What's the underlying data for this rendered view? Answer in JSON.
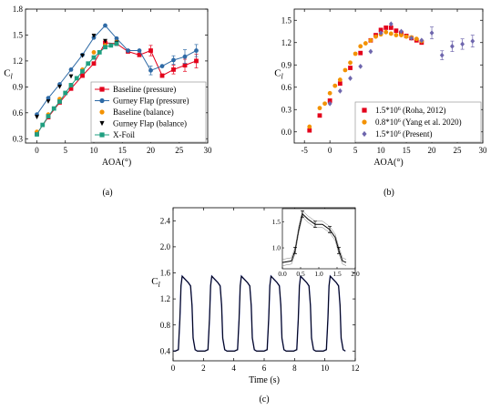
{
  "figure": {
    "panels": [
      {
        "id": "a",
        "label": "(a)",
        "xlabel": "AOA(°)",
        "ylabel": "C",
        "ylabel_sub": "l",
        "xlim": [
          -2,
          30
        ],
        "ylim": [
          0.25,
          1.8
        ],
        "xticks": [
          0,
          5,
          10,
          15,
          20,
          25,
          30
        ],
        "yticks": [
          0.3,
          0.6,
          0.9,
          1.2,
          1.5,
          1.8
        ],
        "ytick_labels": [
          "0.3",
          "0.6",
          "0.9",
          "1.2",
          "1.5",
          "1.8"
        ],
        "legend": [
          {
            "label": "Baseline (pressure)",
            "color": "#e3001b",
            "marker": "square",
            "line": true
          },
          {
            "label": "Gurney Flap (pressure)",
            "color": "#2e6aa6",
            "marker": "circle",
            "line": true
          },
          {
            "label": "Baseline (balance)",
            "color": "#f39200",
            "marker": "circle",
            "line": false
          },
          {
            "label": "Gurney Flap (balance)",
            "color": "#000000",
            "marker": "triangle-down",
            "line": false
          },
          {
            "label": "X-Foil",
            "color": "#1f9f80",
            "marker": "square",
            "line": true
          }
        ]
      },
      {
        "id": "b",
        "label": "(b)",
        "xlabel": "AOA(°)",
        "ylabel": "C",
        "ylabel_sub": "l",
        "xlim": [
          -7,
          30
        ],
        "ylim": [
          -0.15,
          1.65
        ],
        "xticks": [
          -5,
          0,
          5,
          10,
          15,
          20,
          25,
          30
        ],
        "yticks": [
          0.0,
          0.3,
          0.6,
          0.9,
          1.2,
          1.5
        ],
        "ytick_labels": [
          "0.0",
          "0.3",
          "0.6",
          "0.9",
          "1.2",
          "1.5"
        ],
        "legend": [
          {
            "label_pre": "1.5*10",
            "sup": "6",
            "label_post": " (Roha, 2012)",
            "color": "#e3001b",
            "marker": "square"
          },
          {
            "label_pre": "0.8*10",
            "sup": "6",
            "label_post": " (Yang et al. 2020)",
            "color": "#f39200",
            "marker": "circle"
          },
          {
            "label_pre": "1.5*10",
            "sup": "6",
            "label_post": " (Present)",
            "color": "#6e66ad",
            "marker": "diamond"
          }
        ]
      },
      {
        "id": "c",
        "label": "(c)",
        "xlabel": "Time (s)",
        "ylabel": "C",
        "ylabel_sub": "l",
        "xlim": [
          0,
          12
        ],
        "ylim": [
          0.25,
          2.6
        ],
        "xticks": [
          0,
          2,
          4,
          6,
          8,
          10,
          12
        ],
        "yticks": [
          0.4,
          0.8,
          1.2,
          1.6,
          2.0,
          2.4
        ],
        "ytick_labels": [
          "0.4",
          "0.8",
          "1.2",
          "1.6",
          "2.0",
          "2.4"
        ],
        "inset": {
          "xlim": [
            0,
            2
          ],
          "ylim": [
            0.6,
            1.75
          ],
          "xticks": [
            0,
            0.5,
            1.0,
            1.5,
            2.0
          ],
          "xtick_labels": [
            "0.0",
            "0.5",
            "1.0",
            "1.5",
            "2.0"
          ],
          "yticks": [
            1.0,
            1.5
          ],
          "ytick_labels": [
            "1.0",
            "1.5"
          ]
        }
      }
    ]
  },
  "chart_data": [
    {
      "type": "line",
      "panel": "a",
      "xlabel": "AOA(°)",
      "ylabel": "Cl",
      "xlim": [
        -2,
        30
      ],
      "ylim": [
        0.25,
        1.8
      ],
      "series": [
        {
          "name": "Baseline (pressure)",
          "color": "#e3001b",
          "marker": "square",
          "line": true,
          "x": [
            0,
            2,
            4,
            6,
            8,
            10,
            12,
            14,
            16,
            18,
            20,
            22,
            24,
            26,
            28
          ],
          "y": [
            0.36,
            0.55,
            0.72,
            0.88,
            1.03,
            1.17,
            1.41,
            1.4,
            1.31,
            1.27,
            1.32,
            1.03,
            1.1,
            1.15,
            1.2
          ],
          "err": [
            0,
            0,
            0,
            0,
            0,
            0,
            0,
            0,
            0,
            0,
            0.06,
            0,
            0.05,
            0.07,
            0.08
          ]
        },
        {
          "name": "Gurney Flap (pressure)",
          "color": "#2e6aa6",
          "marker": "circle",
          "line": true,
          "x": [
            0,
            2,
            4,
            6,
            8,
            10,
            12,
            14,
            16,
            18,
            20,
            22,
            24,
            26,
            28
          ],
          "y": [
            0.58,
            0.77,
            0.93,
            1.1,
            1.27,
            1.47,
            1.61,
            1.46,
            1.32,
            1.32,
            1.09,
            1.14,
            1.21,
            1.25,
            1.32
          ],
          "err": [
            0,
            0,
            0,
            0,
            0,
            0,
            0,
            0,
            0,
            0,
            0.05,
            0,
            0.05,
            0.08,
            0.07
          ]
        },
        {
          "name": "Baseline (balance)",
          "color": "#f39200",
          "marker": "circle",
          "line": false,
          "x": [
            0,
            2,
            4,
            6,
            8,
            10,
            12,
            14
          ],
          "y": [
            0.38,
            0.58,
            0.76,
            0.92,
            1.1,
            1.3,
            1.38,
            1.42
          ]
        },
        {
          "name": "Gurney Flap (balance)",
          "color": "#000000",
          "marker": "triangle-down",
          "line": false,
          "x": [
            0,
            2,
            4,
            6,
            8,
            10,
            12,
            14
          ],
          "y": [
            0.55,
            0.73,
            0.9,
            1.02,
            1.26,
            1.49,
            1.43,
            1.41
          ]
        },
        {
          "name": "X-Foil",
          "color": "#1f9f80",
          "marker": "square",
          "line": true,
          "x": [
            0,
            1,
            2,
            3,
            4,
            5,
            6,
            7,
            8,
            9,
            10,
            11,
            12,
            13,
            14
          ],
          "y": [
            0.35,
            0.46,
            0.56,
            0.65,
            0.73,
            0.83,
            0.92,
            1.0,
            1.08,
            1.17,
            1.24,
            1.3,
            1.36,
            1.38,
            1.4
          ]
        }
      ]
    },
    {
      "type": "scatter",
      "panel": "b",
      "xlabel": "AOA(°)",
      "ylabel": "Cl",
      "xlim": [
        -7,
        30
      ],
      "ylim": [
        -0.15,
        1.65
      ],
      "series": [
        {
          "name": "1.5*10^6 (Roha, 2012)",
          "color": "#e3001b",
          "marker": "square",
          "x": [
            -4,
            -2,
            0,
            2,
            4,
            6,
            8,
            9,
            10,
            11,
            12,
            13,
            14,
            15,
            16,
            17,
            18
          ],
          "y": [
            0.02,
            0.22,
            0.42,
            0.65,
            0.86,
            1.06,
            1.23,
            1.3,
            1.37,
            1.4,
            1.4,
            1.36,
            1.33,
            1.29,
            1.26,
            1.23,
            1.2
          ]
        },
        {
          "name": "0.8*10^6 (Yang et al. 2020)",
          "color": "#f39200",
          "marker": "circle",
          "x": [
            -4,
            -2,
            -1,
            0,
            1,
            2,
            3,
            4,
            5,
            6,
            7,
            8,
            9,
            10,
            11,
            12,
            13,
            14,
            15,
            16,
            17,
            18
          ],
          "y": [
            0.07,
            0.32,
            0.38,
            0.52,
            0.62,
            0.7,
            0.83,
            0.93,
            1.05,
            1.15,
            1.19,
            1.23,
            1.28,
            1.31,
            1.34,
            1.32,
            1.3,
            1.3,
            1.28,
            1.27,
            1.25,
            1.22
          ]
        },
        {
          "name": "1.5*10^6 (Present)",
          "color": "#6e66ad",
          "marker": "diamond",
          "x": [
            0,
            2,
            4,
            6,
            8,
            10,
            12,
            14,
            16,
            18,
            20,
            22,
            24,
            26,
            28
          ],
          "y": [
            0.38,
            0.55,
            0.72,
            0.88,
            1.08,
            1.33,
            1.45,
            1.35,
            1.26,
            1.23,
            1.33,
            1.03,
            1.15,
            1.18,
            1.22
          ],
          "err": [
            0,
            0,
            0,
            0,
            0,
            0,
            0,
            0,
            0,
            0,
            0.08,
            0.06,
            0.07,
            0.07,
            0.08
          ]
        }
      ]
    },
    {
      "type": "line",
      "panel": "c",
      "xlabel": "Time (s)",
      "ylabel": "Cl",
      "xlim": [
        0,
        12
      ],
      "ylim": [
        0.25,
        2.6
      ],
      "series": [
        {
          "name": "",
          "color": "#000000",
          "x": [
            0.0,
            0.15,
            0.35,
            0.45,
            0.52,
            0.6,
            0.8,
            1.0,
            1.15,
            1.25,
            1.32,
            1.45,
            1.6,
            1.8,
            1.95
          ],
          "y": [
            0.4,
            0.4,
            0.42,
            0.9,
            1.4,
            1.55,
            1.5,
            1.45,
            1.4,
            1.1,
            0.6,
            0.42,
            0.4,
            0.4,
            0.4
          ]
        }
      ],
      "period_s": 1.95,
      "cycles": 6,
      "inset": {
        "xlim": [
          0,
          2
        ],
        "ylim": [
          0.6,
          1.75
        ],
        "x": [
          0.0,
          0.25,
          0.35,
          0.45,
          0.55,
          0.7,
          0.9,
          1.1,
          1.3,
          1.45,
          1.55,
          1.65,
          1.75
        ],
        "y": [
          0.72,
          0.75,
          0.95,
          1.35,
          1.65,
          1.55,
          1.45,
          1.45,
          1.35,
          1.2,
          0.95,
          0.75,
          0.72
        ]
      }
    }
  ]
}
